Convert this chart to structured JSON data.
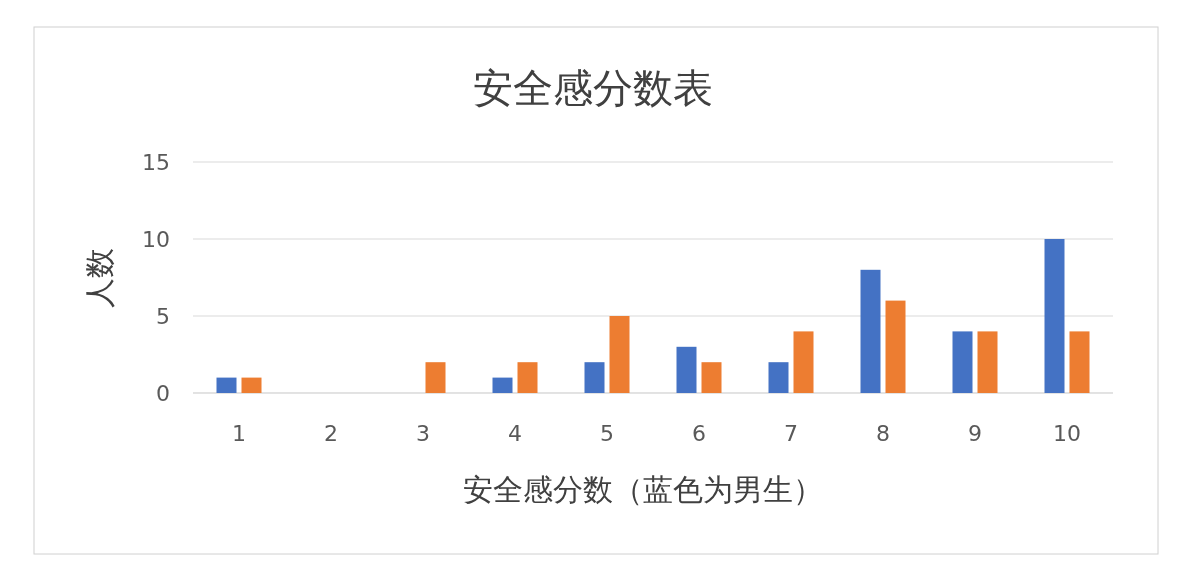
{
  "chart_data": {
    "type": "bar",
    "title": "安全感分数表",
    "xlabel": "安全感分数（蓝色为男生）",
    "ylabel": "人数",
    "categories": [
      "1",
      "2",
      "3",
      "4",
      "5",
      "6",
      "7",
      "8",
      "9",
      "10"
    ],
    "series": [
      {
        "color": "#4472c4",
        "values": [
          1,
          0,
          0,
          1,
          2,
          3,
          2,
          8,
          4,
          10
        ]
      },
      {
        "color": "#ed7d31",
        "values": [
          1,
          0,
          2,
          2,
          5,
          2,
          4,
          6,
          4,
          4
        ]
      }
    ],
    "ylim": [
      0,
      15
    ],
    "yticks": [
      0,
      5,
      10,
      15
    ],
    "grid": "y"
  }
}
